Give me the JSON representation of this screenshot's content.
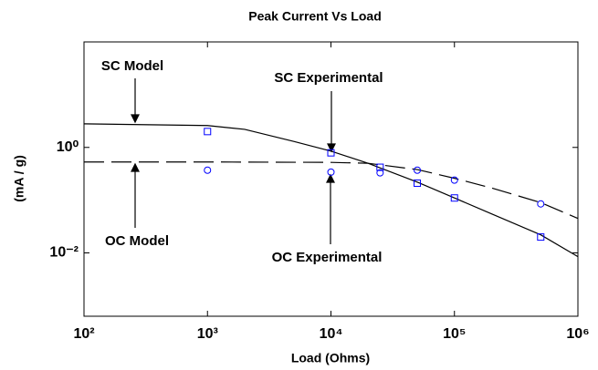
{
  "chart_data": {
    "type": "line",
    "title": "Peak Current Vs Load",
    "x_label": "Load (Ohms)",
    "y_label": "(mA / g)",
    "xscale": "log",
    "yscale": "log",
    "xlim": [
      100,
      1000000
    ],
    "ylim": [
      0.00063,
      100
    ],
    "xticks": [
      {
        "value": 100,
        "label": "10²"
      },
      {
        "value": 1000,
        "label": "10³"
      },
      {
        "value": 10000,
        "label": "10⁴"
      },
      {
        "value": 100000,
        "label": "10⁵"
      },
      {
        "value": 1000000,
        "label": "10⁶"
      }
    ],
    "yticks": [
      {
        "value": 0.01,
        "label": "10⁻²"
      },
      {
        "value": 1,
        "label": "10⁰"
      }
    ],
    "grid": false,
    "series": [
      {
        "name": "SC Model",
        "color": "#000000",
        "style": "solid",
        "x": [
          100,
          1000,
          2000,
          5000,
          10000,
          20000,
          50000,
          100000,
          200000,
          500000,
          1000000
        ],
        "values": [
          2.8,
          2.6,
          2.2,
          1.3,
          0.85,
          0.5,
          0.22,
          0.11,
          0.055,
          0.022,
          0.0085
        ]
      },
      {
        "name": "OC Model",
        "color": "#000000",
        "style": "dashed",
        "x": [
          100,
          1000,
          10000,
          20000,
          50000,
          100000,
          200000,
          500000,
          1000000
        ],
        "values": [
          0.53,
          0.53,
          0.52,
          0.5,
          0.38,
          0.26,
          0.17,
          0.09,
          0.045
        ]
      },
      {
        "name": "SC Experimental",
        "color": "#0000ff",
        "style": "square",
        "x": [
          1000,
          10000,
          25000,
          50000,
          100000,
          500000
        ],
        "values": [
          2.0,
          0.79,
          0.42,
          0.21,
          0.11,
          0.02
        ]
      },
      {
        "name": "OC Experimental",
        "color": "#0000ff",
        "style": "circle",
        "x": [
          1000,
          10000,
          25000,
          50000,
          100000,
          500000
        ],
        "values": [
          0.37,
          0.34,
          0.33,
          0.37,
          0.24,
          0.085
        ]
      }
    ]
  }
}
